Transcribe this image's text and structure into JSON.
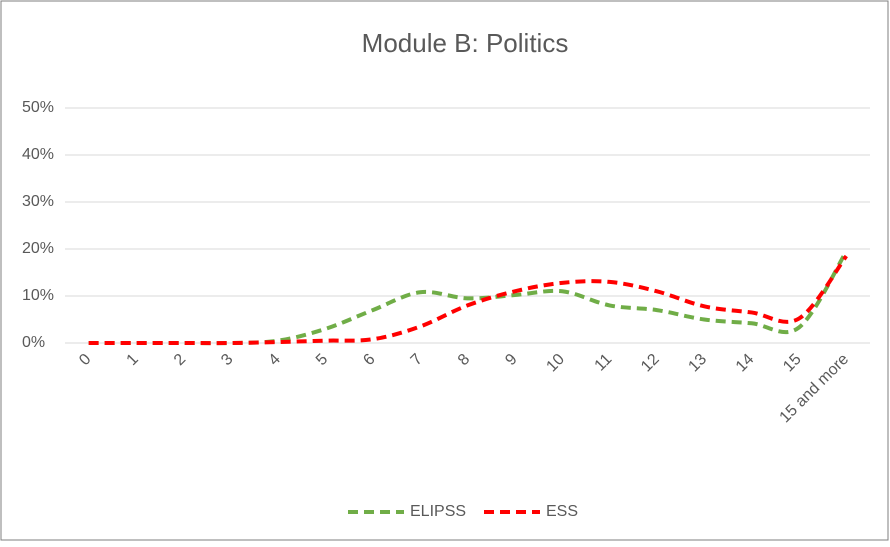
{
  "chart_data": {
    "type": "line",
    "title": "Module B: Politics",
    "categories": [
      "0",
      "1",
      "2",
      "3",
      "4",
      "5",
      "6",
      "7",
      "8",
      "9",
      "10",
      "11",
      "12",
      "13",
      "14",
      "15",
      "15 and more"
    ],
    "series": [
      {
        "name": "ELIPSS",
        "color": "#70ad47",
        "values": [
          0,
          0,
          0,
          0,
          0.5,
          3,
          7,
          10.8,
          9.5,
          10.2,
          11,
          8,
          7,
          5,
          4.2,
          3.3,
          19.5
        ]
      },
      {
        "name": "ESS",
        "color": "#ff0000",
        "values": [
          0,
          0,
          0,
          0,
          0.2,
          0.5,
          0.8,
          3.5,
          8,
          11,
          12.8,
          13,
          11,
          7.8,
          6.5,
          5.2,
          18.5
        ]
      }
    ],
    "ylim": [
      0,
      50
    ],
    "yticks": [
      {
        "value": 0,
        "label": "0%"
      },
      {
        "value": 10,
        "label": "10%"
      },
      {
        "value": 20,
        "label": "20%"
      },
      {
        "value": 30,
        "label": "30%"
      },
      {
        "value": 40,
        "label": "40%"
      },
      {
        "value": 50,
        "label": "50%"
      }
    ],
    "grid": true,
    "smooth": true,
    "legend": "bottom"
  }
}
